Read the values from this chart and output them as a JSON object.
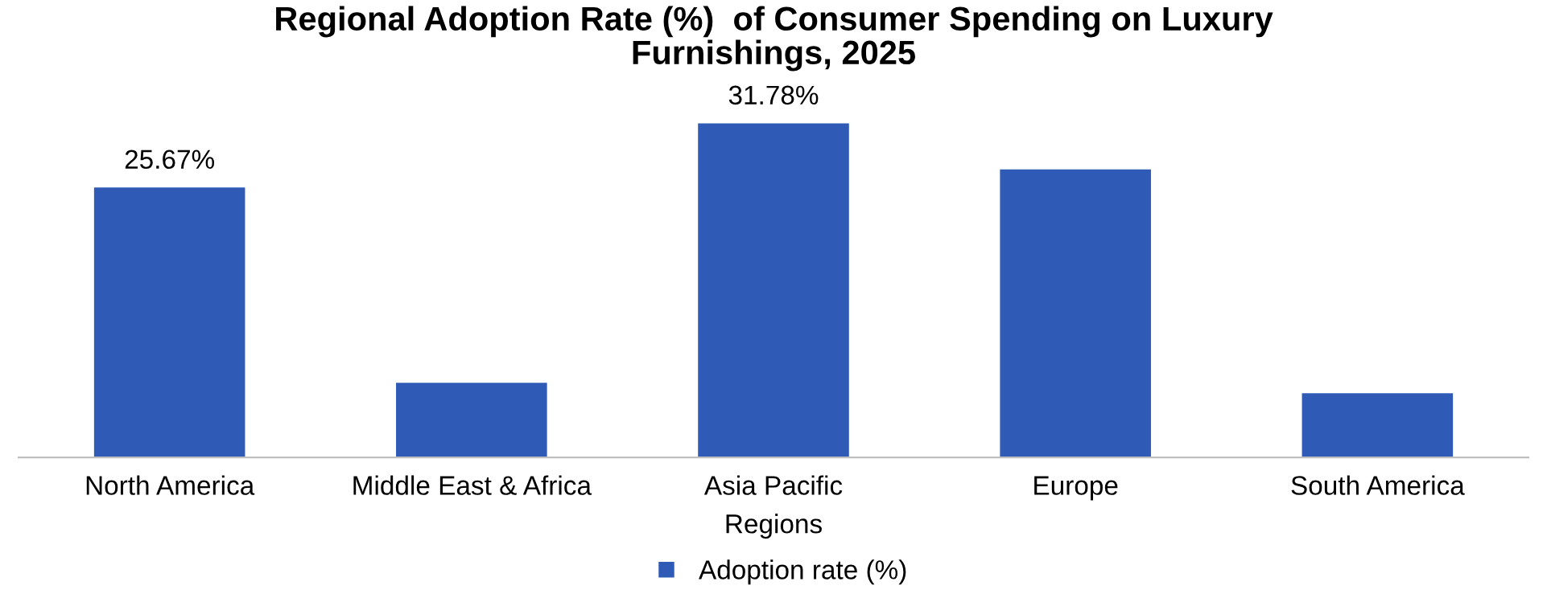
{
  "chart_data": {
    "type": "bar",
    "title": "Regional Adoption Rate (%)  of Consumer Spending on Luxury\nFurnishings, 2025",
    "xlabel": "Regions",
    "categories": [
      "North America",
      "Middle East & Africa",
      "Asia Pacific",
      "Europe",
      "South America"
    ],
    "series": [
      {
        "name": "Adoption rate (%)",
        "color": "#2f5bb7",
        "values": [
          25.67,
          7.1,
          31.78,
          27.4,
          6.1
        ],
        "value_labels": [
          "25.67%",
          null,
          "31.78%",
          null,
          null
        ]
      }
    ],
    "legend": "bottom",
    "grid": false
  }
}
